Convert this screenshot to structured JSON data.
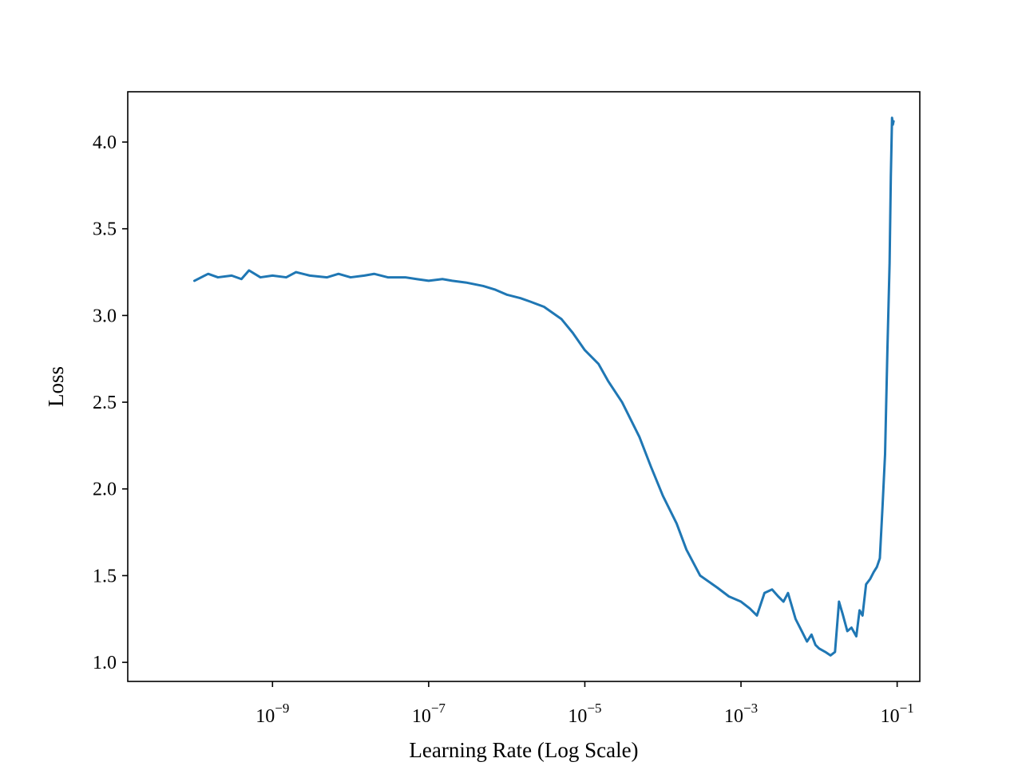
{
  "chart_data": {
    "type": "line",
    "title": "",
    "xlabel": "Learning Rate (Log Scale)",
    "ylabel": "Loss",
    "xscale": "log",
    "xlim": [
      1.4e-11,
      0.195
    ],
    "ylim": [
      0.89,
      4.29
    ],
    "grid": false,
    "legend": "none",
    "line_color": "#1f77b4",
    "x_ticks": [
      {
        "value": 1e-09,
        "base": "10",
        "exp": "−9"
      },
      {
        "value": 1e-07,
        "base": "10",
        "exp": "−7"
      },
      {
        "value": 1e-05,
        "base": "10",
        "exp": "−5"
      },
      {
        "value": 0.001,
        "base": "10",
        "exp": "−3"
      },
      {
        "value": 0.1,
        "base": "10",
        "exp": "−1"
      }
    ],
    "y_ticks": [
      {
        "value": 1.0,
        "label": "1.0"
      },
      {
        "value": 1.5,
        "label": "1.5"
      },
      {
        "value": 2.0,
        "label": "2.0"
      },
      {
        "value": 2.5,
        "label": "2.5"
      },
      {
        "value": 3.0,
        "label": "3.0"
      },
      {
        "value": 3.5,
        "label": "3.5"
      },
      {
        "value": 4.0,
        "label": "4.0"
      }
    ],
    "series": [
      {
        "x": [
          1e-10,
          1.5e-10,
          2e-10,
          3e-10,
          4e-10,
          5e-10,
          7e-10,
          1e-09,
          1.5e-09,
          2e-09,
          3e-09,
          5e-09,
          7e-09,
          1e-08,
          1.5e-08,
          2e-08,
          3e-08,
          5e-08,
          7e-08,
          1e-07,
          1.5e-07,
          2e-07,
          3e-07,
          5e-07,
          7e-07,
          1e-06,
          1.5e-06,
          2e-06,
          3e-06,
          5e-06,
          7e-06,
          1e-05,
          1.5e-05,
          2e-05,
          3e-05,
          5e-05,
          7e-05,
          0.0001,
          0.00015,
          0.0002,
          0.0003,
          0.0005,
          0.0007,
          0.001,
          0.0013,
          0.0016,
          0.002,
          0.0025,
          0.003,
          0.0035,
          0.004,
          0.005,
          0.006,
          0.007,
          0.008,
          0.009,
          0.01,
          0.012,
          0.014,
          0.016,
          0.018,
          0.02,
          0.023,
          0.026,
          0.03,
          0.033,
          0.036,
          0.04,
          0.045,
          0.05,
          0.055,
          0.06,
          0.065,
          0.07,
          0.075,
          0.08,
          0.083,
          0.086,
          0.088,
          0.09
        ],
        "y": [
          3.2,
          3.24,
          3.22,
          3.23,
          3.21,
          3.26,
          3.22,
          3.23,
          3.22,
          3.25,
          3.23,
          3.22,
          3.24,
          3.22,
          3.23,
          3.24,
          3.22,
          3.22,
          3.21,
          3.2,
          3.21,
          3.2,
          3.19,
          3.17,
          3.15,
          3.12,
          3.1,
          3.08,
          3.05,
          2.98,
          2.9,
          2.8,
          2.72,
          2.62,
          2.5,
          2.3,
          2.13,
          1.96,
          1.8,
          1.65,
          1.5,
          1.43,
          1.38,
          1.35,
          1.31,
          1.27,
          1.4,
          1.42,
          1.38,
          1.35,
          1.4,
          1.25,
          1.18,
          1.12,
          1.16,
          1.1,
          1.08,
          1.06,
          1.04,
          1.06,
          1.35,
          1.28,
          1.18,
          1.2,
          1.15,
          1.3,
          1.27,
          1.45,
          1.48,
          1.52,
          1.55,
          1.6,
          1.9,
          2.2,
          2.8,
          3.3,
          3.8,
          4.14,
          4.1,
          4.12
        ]
      }
    ]
  }
}
